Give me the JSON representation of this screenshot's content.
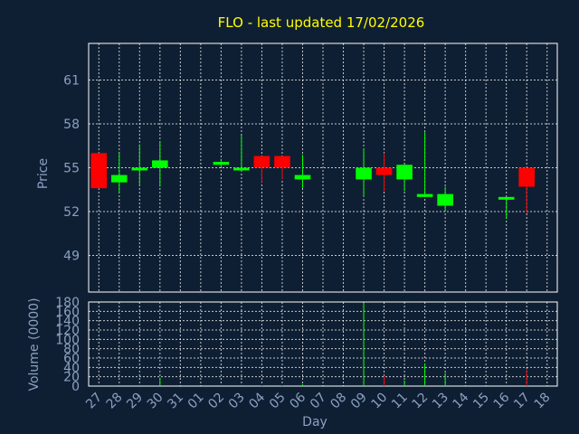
{
  "chart_data": [
    {
      "type": "candlestick",
      "title": "FLO - last updated 17/02/2026",
      "ylabel": "Price",
      "ylim": [
        46.5,
        63.5
      ],
      "yticks": [
        49,
        52,
        55,
        58,
        61
      ],
      "grid": true,
      "colors": {
        "up": "#00ff00",
        "down": "#ff0000",
        "background": "#0f1f33",
        "grid": "#ffffff",
        "title": "#ffff00",
        "axis_text": "#8aa0c0"
      },
      "categories": [
        "27",
        "28",
        "29",
        "30",
        "31",
        "01",
        "02",
        "03",
        "04",
        "05",
        "06",
        "07",
        "08",
        "09",
        "10",
        "11",
        "12",
        "13",
        "14",
        "15",
        "16",
        "17",
        "18"
      ],
      "candles": [
        {
          "day": "27",
          "open": 56.0,
          "close": 53.6,
          "high": 56.0,
          "low": 53.6
        },
        {
          "day": "28",
          "open": 54.0,
          "close": 54.5,
          "high": 56.0,
          "low": 53.3
        },
        {
          "day": "29",
          "open": 54.9,
          "close": 55.0,
          "high": 56.6,
          "low": 53.8
        },
        {
          "day": "30",
          "open": 55.0,
          "close": 55.5,
          "high": 56.8,
          "low": 53.7
        },
        {
          "day": "02",
          "open": 55.2,
          "close": 55.4,
          "high": 55.6,
          "low": 55.1
        },
        {
          "day": "03",
          "open": 54.9,
          "close": 55.0,
          "high": 57.2,
          "low": 54.9
        },
        {
          "day": "04",
          "open": 55.8,
          "close": 55.0,
          "high": 55.8,
          "low": 54.0
        },
        {
          "day": "05",
          "open": 55.8,
          "close": 55.0,
          "high": 55.8,
          "low": 54.2
        },
        {
          "day": "06",
          "open": 54.2,
          "close": 54.5,
          "high": 55.9,
          "low": 53.6
        },
        {
          "day": "09",
          "open": 54.2,
          "close": 55.0,
          "high": 56.3,
          "low": 53.0
        },
        {
          "day": "10",
          "open": 55.0,
          "close": 54.5,
          "high": 56.0,
          "low": 53.4
        },
        {
          "day": "11",
          "open": 54.2,
          "close": 55.2,
          "high": 55.2,
          "low": 53.4
        },
        {
          "day": "12",
          "open": 53.0,
          "close": 53.2,
          "high": 57.5,
          "low": 53.0
        },
        {
          "day": "13",
          "open": 52.4,
          "close": 53.2,
          "high": 53.7,
          "low": 52.0
        },
        {
          "day": "16",
          "open": 52.9,
          "close": 53.0,
          "high": 53.0,
          "low": 51.5
        },
        {
          "day": "17",
          "open": 55.0,
          "close": 53.7,
          "high": 55.0,
          "low": 51.9
        }
      ]
    },
    {
      "type": "bar",
      "ylabel": "Volume (0000)",
      "xlabel": "Day",
      "ylim": [
        0,
        180
      ],
      "yticks": [
        0,
        20,
        40,
        60,
        80,
        100,
        120,
        140,
        160,
        180
      ],
      "grid": true,
      "categories": [
        "27",
        "28",
        "29",
        "30",
        "31",
        "01",
        "02",
        "03",
        "04",
        "05",
        "06",
        "07",
        "08",
        "09",
        "10",
        "11",
        "12",
        "13",
        "14",
        "15",
        "16",
        "17",
        "18"
      ],
      "volumes": [
        {
          "day": "27",
          "value": 1,
          "direction": "down"
        },
        {
          "day": "28",
          "value": 2,
          "direction": "up"
        },
        {
          "day": "29",
          "value": 1,
          "direction": "up"
        },
        {
          "day": "30",
          "value": 18,
          "direction": "up"
        },
        {
          "day": "02",
          "value": 1,
          "direction": "up"
        },
        {
          "day": "03",
          "value": 1,
          "direction": "up"
        },
        {
          "day": "04",
          "value": 2,
          "direction": "down"
        },
        {
          "day": "05",
          "value": 2,
          "direction": "down"
        },
        {
          "day": "06",
          "value": 4,
          "direction": "up"
        },
        {
          "day": "09",
          "value": 178,
          "direction": "up"
        },
        {
          "day": "10",
          "value": 22,
          "direction": "down"
        },
        {
          "day": "11",
          "value": 12,
          "direction": "up"
        },
        {
          "day": "12",
          "value": 48,
          "direction": "up"
        },
        {
          "day": "13",
          "value": 28,
          "direction": "up"
        },
        {
          "day": "16",
          "value": 2,
          "direction": "up"
        },
        {
          "day": "17",
          "value": 36,
          "direction": "down"
        }
      ]
    }
  ]
}
